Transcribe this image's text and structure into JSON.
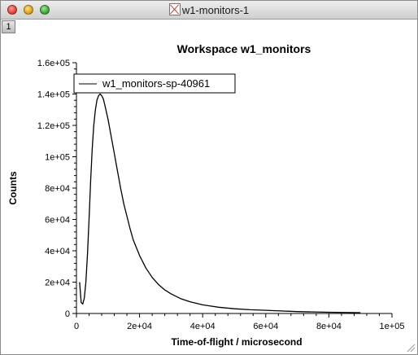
{
  "window": {
    "title": "w1-monitors-1",
    "tab_label": "1"
  },
  "chart_data": {
    "type": "line",
    "title": "Workspace w1_monitors",
    "xlabel": "Time-of-flight / microsecond",
    "ylabel": "Counts",
    "xlim": [
      0,
      100000
    ],
    "ylim": [
      0,
      160000
    ],
    "xticks": [
      0,
      20000,
      40000,
      60000,
      80000,
      100000
    ],
    "xtick_labels": [
      "0",
      "2e+04",
      "4e+04",
      "6e+04",
      "8e+04",
      "1e+05"
    ],
    "yticks": [
      0,
      20000,
      40000,
      60000,
      80000,
      100000,
      120000,
      140000,
      160000
    ],
    "ytick_labels": [
      "0",
      "2e+04",
      "4e+04",
      "6e+04",
      "8e+04",
      "1e+05",
      "1.2e+05",
      "1.4e+05",
      "1.6e+05"
    ],
    "grid": false,
    "legend": "top-left",
    "series": [
      {
        "name": "w1_monitors-sp-40961",
        "color": "#000000",
        "x": [
          1000,
          1500,
          2000,
          2500,
          3000,
          3500,
          4000,
          4500,
          5000,
          5500,
          6000,
          6500,
          7000,
          7500,
          8000,
          8500,
          9000,
          10000,
          11000,
          12000,
          13000,
          14000,
          15000,
          16000,
          17000,
          18000,
          20000,
          22000,
          24000,
          26000,
          28000,
          30000,
          33000,
          36000,
          40000,
          45000,
          50000,
          55000,
          60000,
          70000,
          80000,
          90000
        ],
        "y": [
          20000,
          7000,
          6000,
          10000,
          20000,
          38000,
          60000,
          85000,
          105000,
          120000,
          130000,
          136000,
          139000,
          140000,
          139000,
          137000,
          133000,
          124000,
          113000,
          102000,
          91000,
          80000,
          70000,
          62000,
          54000,
          47000,
          37000,
          29000,
          23000,
          18500,
          15000,
          12500,
          9500,
          7500,
          5500,
          4000,
          3000,
          2400,
          2000,
          1200,
          800,
          500
        ]
      }
    ]
  }
}
